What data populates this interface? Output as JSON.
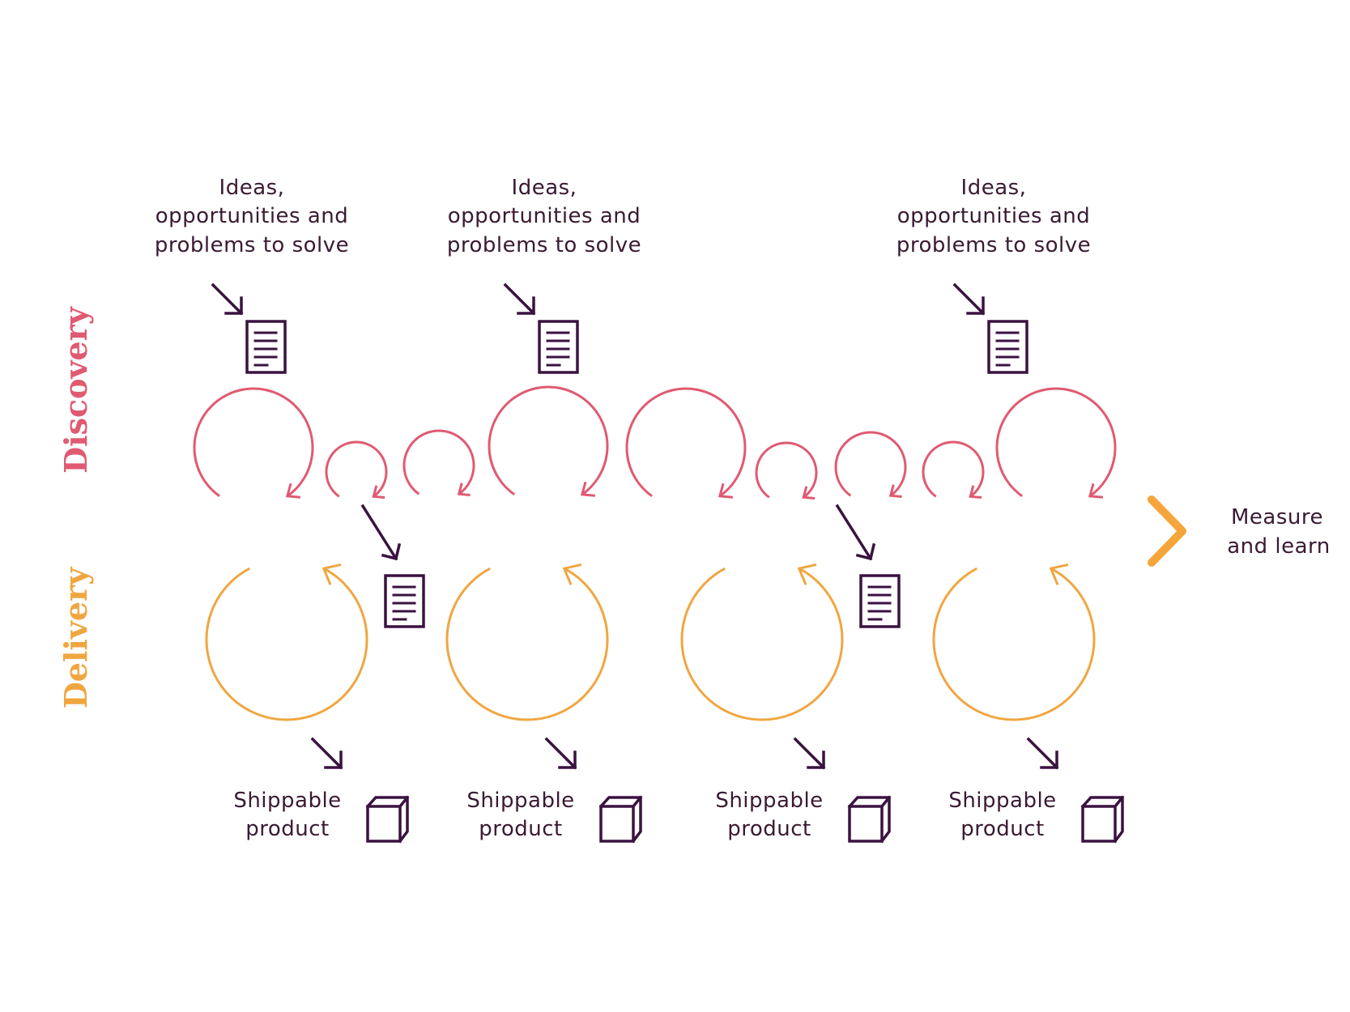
{
  "colors": {
    "discovery": "#e05a72",
    "delivery": "#f0a640",
    "timeline_start": "#8e1896",
    "timeline_mid": "#e8336e",
    "timeline_end": "#f6a53a",
    "icons": "#3a1240",
    "text": "#3a1a33"
  },
  "labels": {
    "discovery": "Discovery",
    "delivery": "Delivery",
    "measure_line1": "Measure",
    "measure_line2": "and learn"
  },
  "ideas": [
    {
      "line1": "Ideas,",
      "line2": "opportunities and",
      "line3": "problems to solve"
    },
    {
      "line1": "Ideas,",
      "line2": "opportunities and",
      "line3": "problems to solve"
    },
    {
      "line1": "Ideas,",
      "line2": "opportunities and",
      "line3": "problems to solve"
    }
  ],
  "shippable": [
    {
      "line1": "Shippable",
      "line2": "product"
    },
    {
      "line1": "Shippable",
      "line2": "product"
    },
    {
      "line1": "Shippable",
      "line2": "product"
    },
    {
      "line1": "Shippable",
      "line2": "product"
    }
  ],
  "icons": [
    "document-icon",
    "arrow-down-right-icon",
    "box-icon",
    "cycle-arrow-icon"
  ]
}
